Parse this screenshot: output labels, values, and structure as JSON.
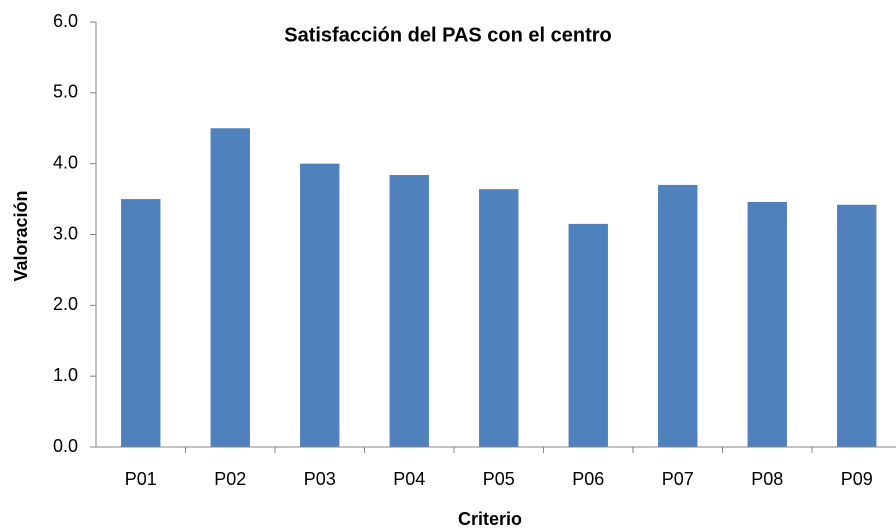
{
  "chart_data": {
    "type": "bar",
    "title": "Satisfacción del PAS con el centro",
    "x_label": "Criterio",
    "y_label": "Valoración",
    "categories": [
      "P01",
      "P02",
      "P03",
      "P04",
      "P05",
      "P06",
      "P07",
      "P08",
      "P09"
    ],
    "values": [
      3.5,
      4.5,
      4.0,
      3.84,
      3.64,
      3.15,
      3.7,
      3.46,
      3.42
    ],
    "color": "#4f81bd",
    "ylim": [
      0,
      6
    ],
    "yticks": [
      {
        "value": 0,
        "label": "0.0"
      },
      {
        "value": 1,
        "label": "1.0"
      },
      {
        "value": 2,
        "label": "2.0"
      },
      {
        "value": 3,
        "label": "3.0"
      },
      {
        "value": 4,
        "label": "4.0"
      },
      {
        "value": 5,
        "label": "5.0"
      },
      {
        "value": 6,
        "label": "6.0"
      }
    ],
    "grid": false
  }
}
